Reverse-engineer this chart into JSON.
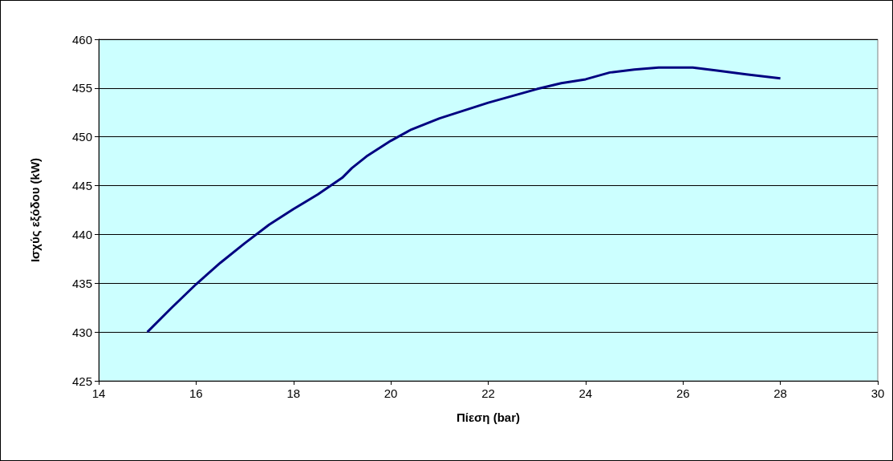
{
  "chart_data": {
    "type": "line",
    "xlabel": "Πίεση (bar)",
    "ylabel": "Ισχύς εξόδου (kW)",
    "series": [
      {
        "color": "#000080",
        "x": [
          15,
          15.5,
          16,
          16.5,
          17,
          17.5,
          18,
          18.5,
          19,
          19.2,
          19.5,
          20,
          20.4,
          20.7,
          21,
          21.5,
          22,
          22.5,
          23,
          23.5,
          24,
          24.5,
          25,
          25.5,
          26.2,
          26.7,
          27.3,
          28
        ],
        "values": [
          430,
          432.5,
          434.9,
          437.1,
          439.1,
          441,
          442.6,
          444.1,
          445.8,
          446.8,
          448,
          449.6,
          450.7,
          451.3,
          451.9,
          452.7,
          453.5,
          454.2,
          454.9,
          455.5,
          455.9,
          456.6,
          456.9,
          457.1,
          457.1,
          456.8,
          456.4,
          456
        ]
      }
    ],
    "xlim": [
      14,
      30
    ],
    "xticks": [
      14,
      16,
      18,
      20,
      22,
      24,
      26,
      28,
      30
    ],
    "ylim": [
      425,
      460
    ],
    "yticks": [
      425,
      430,
      435,
      440,
      445,
      450,
      455,
      460
    ],
    "grid": "y",
    "marker": "none",
    "line_style": "solid"
  }
}
